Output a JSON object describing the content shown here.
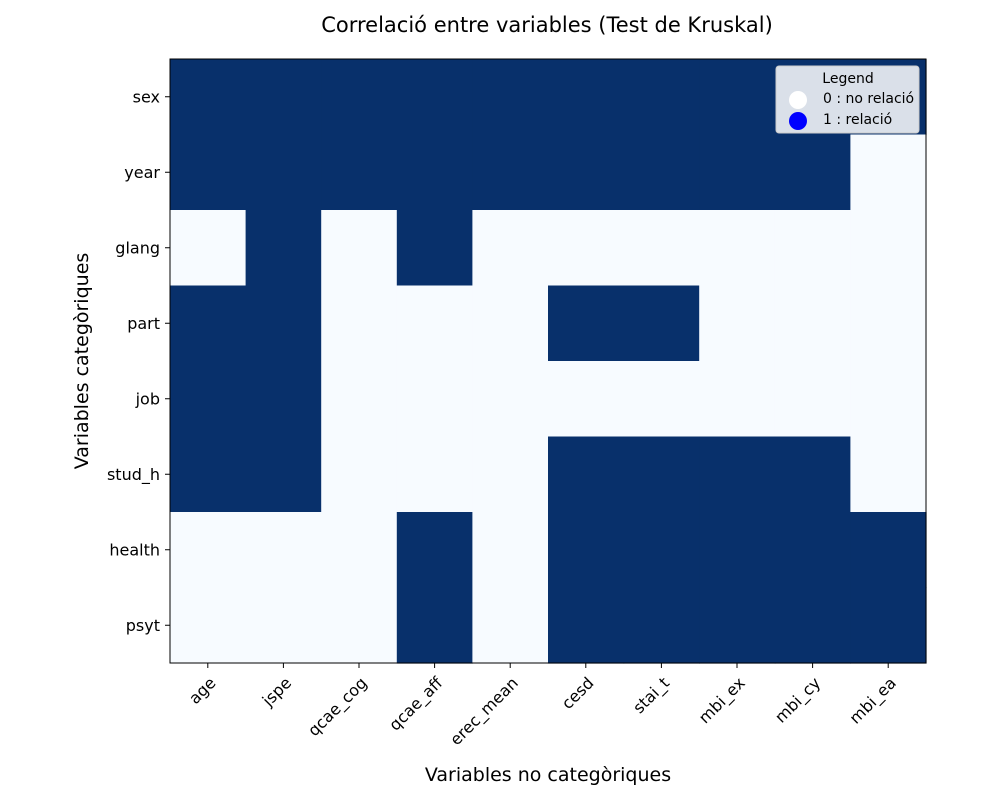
{
  "chart_data": {
    "type": "heatmap",
    "title": "Correlació entre variables (Test de Kruskal)",
    "xlabel": "Variables no categòriques",
    "ylabel": "Variables categòriques",
    "x_categories": [
      "age",
      "jspe",
      "qcae_cog",
      "qcae_aff",
      "erec_mean",
      "cesd",
      "stai_t",
      "mbi_ex",
      "mbi_cy",
      "mbi_ea"
    ],
    "y_categories": [
      "sex",
      "year",
      "glang",
      "part",
      "job",
      "stud_h",
      "health",
      "psyt"
    ],
    "values": [
      [
        1,
        1,
        1,
        1,
        1,
        1,
        1,
        1,
        1,
        1
      ],
      [
        1,
        1,
        1,
        1,
        1,
        1,
        1,
        1,
        1,
        0
      ],
      [
        0,
        1,
        0,
        1,
        0,
        0,
        0,
        0,
        0,
        0
      ],
      [
        1,
        1,
        0,
        0,
        0,
        1,
        1,
        0,
        0,
        0
      ],
      [
        1,
        1,
        0,
        0,
        0,
        0,
        0,
        0,
        0,
        0
      ],
      [
        1,
        1,
        0,
        0,
        0,
        1,
        1,
        1,
        1,
        0
      ],
      [
        0,
        0,
        0,
        1,
        0,
        1,
        1,
        1,
        1,
        1
      ],
      [
        0,
        0,
        0,
        1,
        0,
        1,
        1,
        1,
        1,
        1
      ]
    ],
    "colors": {
      "0": "#f7fbff",
      "1": "#08306b"
    },
    "legend": {
      "title": "Legend",
      "placement": "top-right",
      "entries": [
        {
          "label": "0 : no relació",
          "marker_color": "#ffffff"
        },
        {
          "label": "1 : relació",
          "marker_color": "#0000ff"
        }
      ]
    },
    "grid": false
  }
}
